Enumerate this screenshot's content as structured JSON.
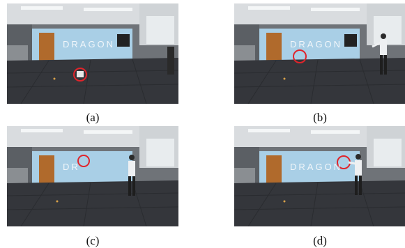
{
  "figure": {
    "panels": [
      {
        "id": "a",
        "caption": "(a)",
        "wall_text": "DRAGON",
        "marker_color": "#e0242b",
        "person_visible": false
      },
      {
        "id": "b",
        "caption": "(b)",
        "wall_text": "DRAGON",
        "marker_color": "#e0242b",
        "person_visible": true
      },
      {
        "id": "c",
        "caption": "(c)",
        "wall_text": "DR",
        "marker_color": "#e0242b",
        "person_visible": true
      },
      {
        "id": "d",
        "caption": "(d)",
        "wall_text": "DRAGON",
        "marker_color": "#e0242b",
        "person_visible": true
      }
    ]
  }
}
